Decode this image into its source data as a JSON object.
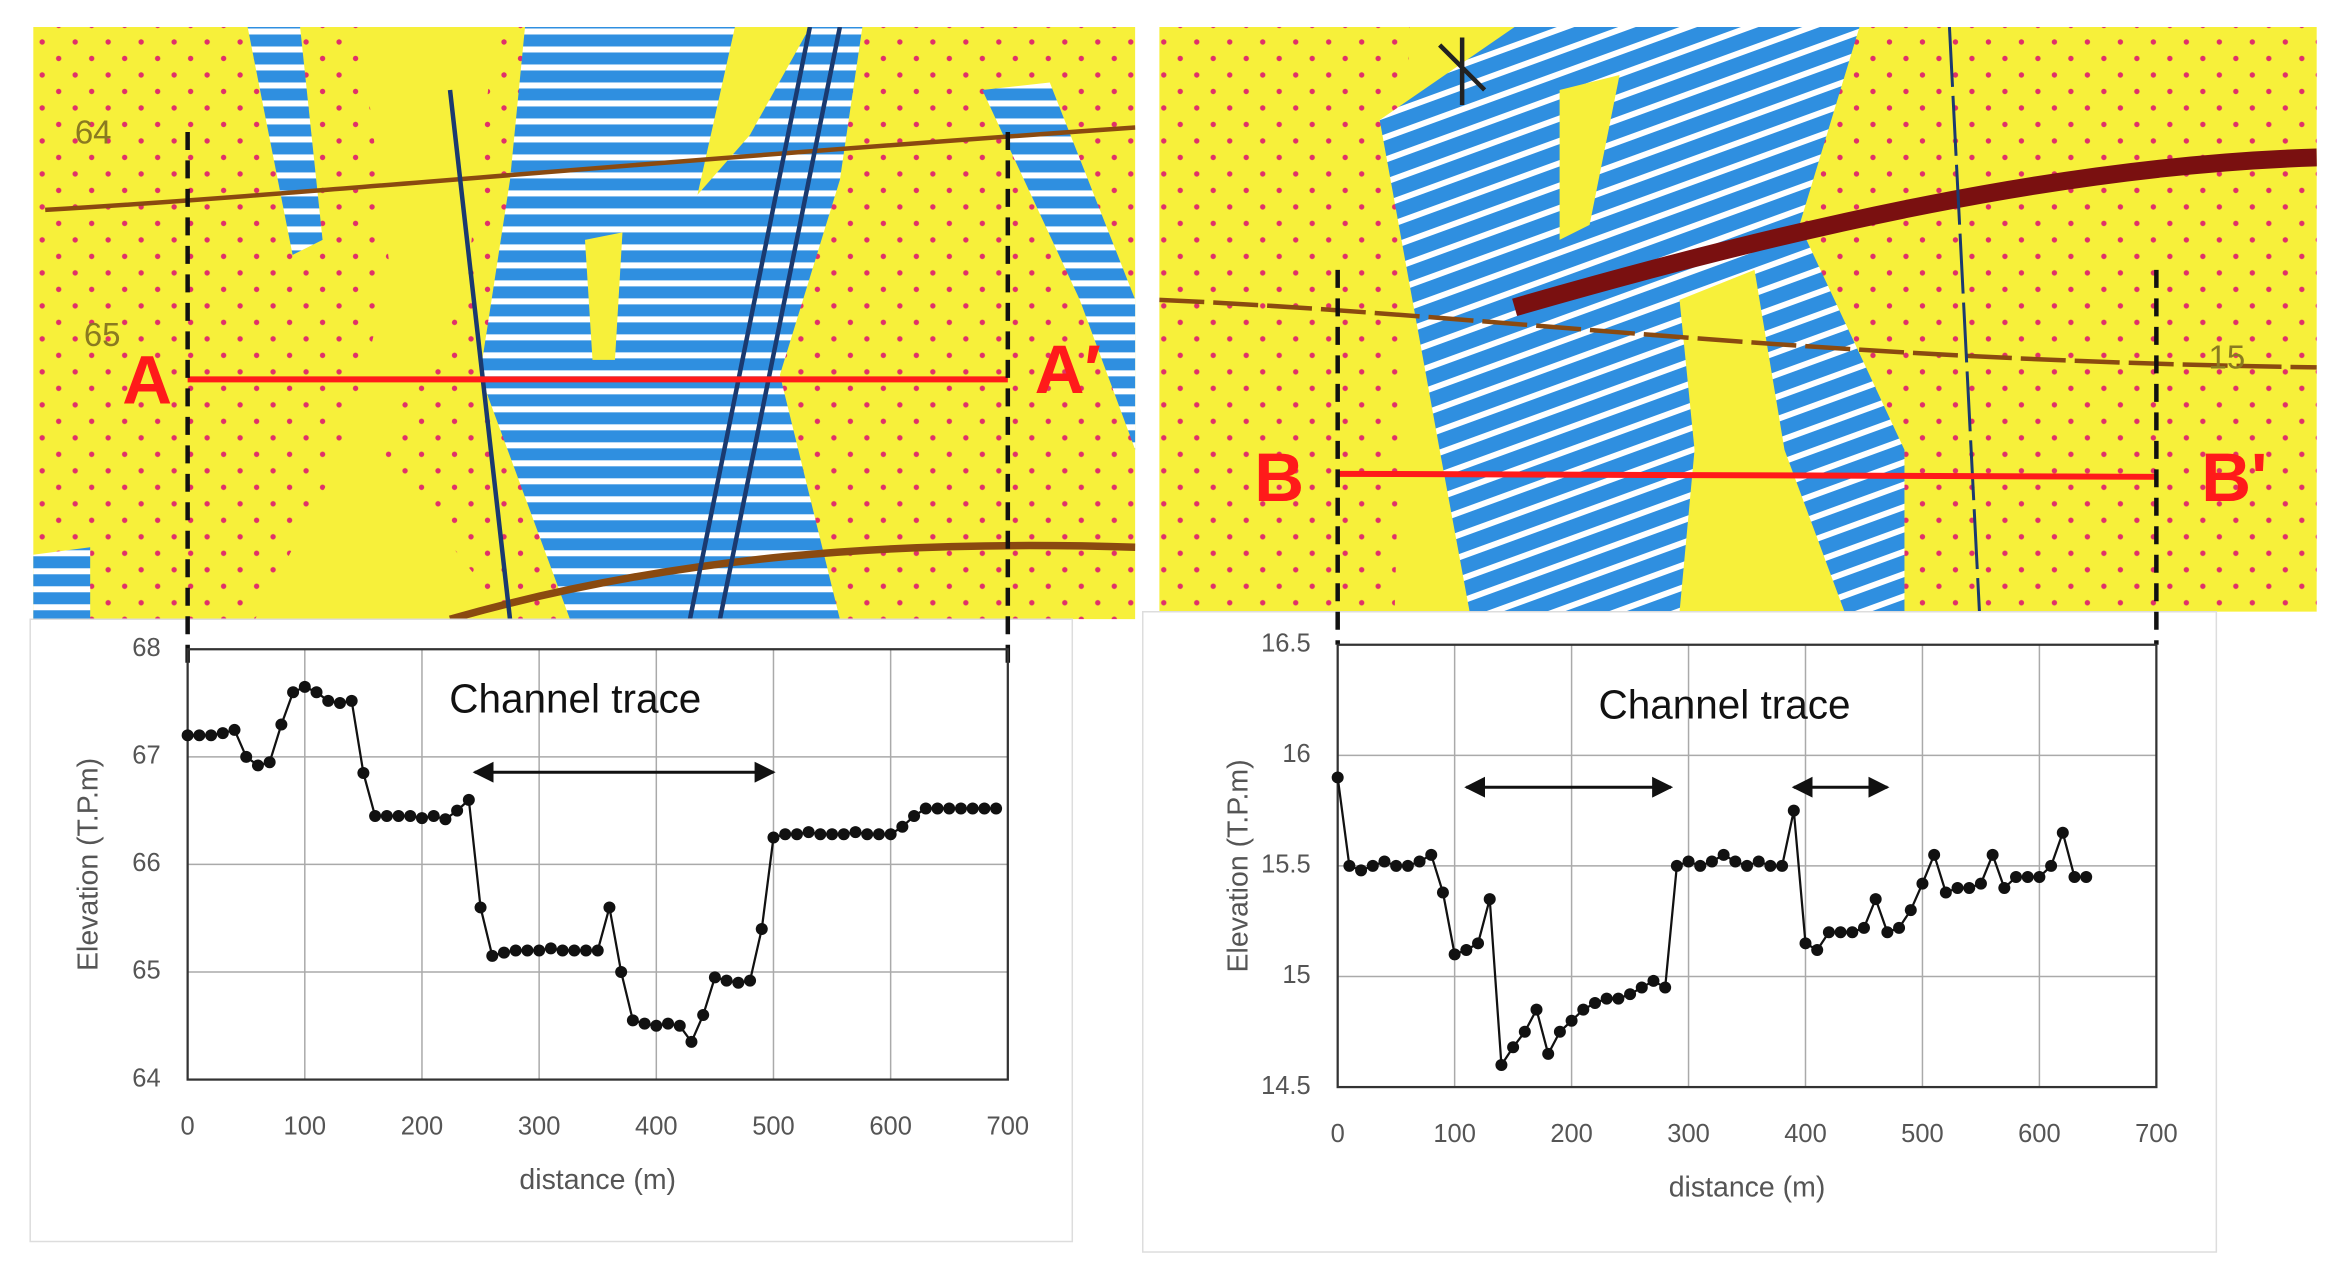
{
  "chart_data": [
    {
      "type": "line",
      "x_label": "distance (m)",
      "y_label": "Elevation (T.P.m)",
      "section_labels": [
        "A",
        "A′"
      ],
      "map_labels": [
        "64",
        "65"
      ],
      "annotation": {
        "text": "Channel trace",
        "spans": [
          [
            245,
            500
          ]
        ]
      },
      "color": "#111111",
      "grid": true,
      "xlim": [
        0,
        700
      ],
      "xticks": [
        0,
        100,
        200,
        300,
        400,
        500,
        600,
        700
      ],
      "ylim": [
        64,
        68
      ],
      "yticks": [
        64,
        65,
        66,
        67,
        68
      ],
      "x": [
        0,
        10,
        20,
        30,
        40,
        50,
        60,
        70,
        80,
        90,
        100,
        110,
        120,
        130,
        140,
        150,
        160,
        170,
        180,
        190,
        200,
        210,
        220,
        230,
        240,
        250,
        260,
        270,
        280,
        290,
        300,
        310,
        320,
        330,
        340,
        350,
        360,
        370,
        380,
        390,
        400,
        410,
        420,
        430,
        440,
        450,
        460,
        470,
        480,
        490,
        500,
        510,
        520,
        530,
        540,
        550,
        560,
        570,
        580,
        590,
        600,
        610,
        620,
        630,
        640,
        650,
        660,
        670,
        680,
        690
      ],
      "values": [
        67.2,
        67.2,
        67.2,
        67.22,
        67.25,
        67.0,
        66.92,
        66.95,
        67.3,
        67.6,
        67.65,
        67.6,
        67.52,
        67.5,
        67.52,
        66.85,
        66.45,
        66.45,
        66.45,
        66.45,
        66.43,
        66.45,
        66.42,
        66.5,
        66.6,
        65.6,
        65.15,
        65.18,
        65.2,
        65.2,
        65.2,
        65.22,
        65.2,
        65.2,
        65.2,
        65.2,
        65.6,
        65.0,
        64.55,
        64.52,
        64.5,
        64.52,
        64.5,
        64.35,
        64.6,
        64.95,
        64.92,
        64.9,
        64.92,
        65.4,
        66.25,
        66.28,
        66.28,
        66.3,
        66.28,
        66.28,
        66.28,
        66.3,
        66.28,
        66.28,
        66.28,
        66.35,
        66.45,
        66.52,
        66.52,
        66.52,
        66.52,
        66.52,
        66.52,
        66.52
      ]
    },
    {
      "type": "line",
      "x_label": "distance (m)",
      "y_label": "Elevation (T.P.m)",
      "section_labels": [
        "B",
        "B'"
      ],
      "map_labels": [
        "15"
      ],
      "annotation": {
        "text": "Channel trace",
        "spans": [
          [
            110,
            285
          ],
          [
            390,
            470
          ]
        ]
      },
      "color": "#111111",
      "grid": true,
      "xlim": [
        0,
        700
      ],
      "xticks": [
        0,
        100,
        200,
        300,
        400,
        500,
        600,
        700
      ],
      "ylim": [
        14.5,
        16.5
      ],
      "yticks": [
        14.5,
        15,
        15.5,
        16,
        16.5
      ],
      "x": [
        0,
        10,
        20,
        30,
        40,
        50,
        60,
        70,
        80,
        90,
        100,
        110,
        120,
        130,
        140,
        150,
        160,
        170,
        180,
        190,
        200,
        210,
        220,
        230,
        240,
        250,
        260,
        270,
        280,
        290,
        300,
        310,
        320,
        330,
        340,
        350,
        360,
        370,
        380,
        390,
        400,
        410,
        420,
        430,
        440,
        450,
        460,
        470,
        480,
        490,
        500,
        510,
        520,
        530,
        540,
        550,
        560,
        570,
        580,
        590,
        600,
        610,
        620,
        630,
        640
      ],
      "values": [
        15.9,
        15.5,
        15.48,
        15.5,
        15.52,
        15.5,
        15.5,
        15.52,
        15.55,
        15.38,
        15.1,
        15.12,
        15.15,
        15.35,
        14.6,
        14.68,
        14.75,
        14.85,
        14.65,
        14.75,
        14.8,
        14.85,
        14.88,
        14.9,
        14.9,
        14.92,
        14.95,
        14.98,
        14.95,
        15.5,
        15.52,
        15.5,
        15.52,
        15.55,
        15.52,
        15.5,
        15.52,
        15.5,
        15.5,
        15.75,
        15.15,
        15.12,
        15.2,
        15.2,
        15.2,
        15.22,
        15.35,
        15.2,
        15.22,
        15.3,
        15.42,
        15.55,
        15.38,
        15.4,
        15.4,
        15.42,
        15.55,
        15.4,
        15.45,
        15.45,
        15.45,
        15.5,
        15.65,
        15.45,
        15.45
      ]
    }
  ]
}
